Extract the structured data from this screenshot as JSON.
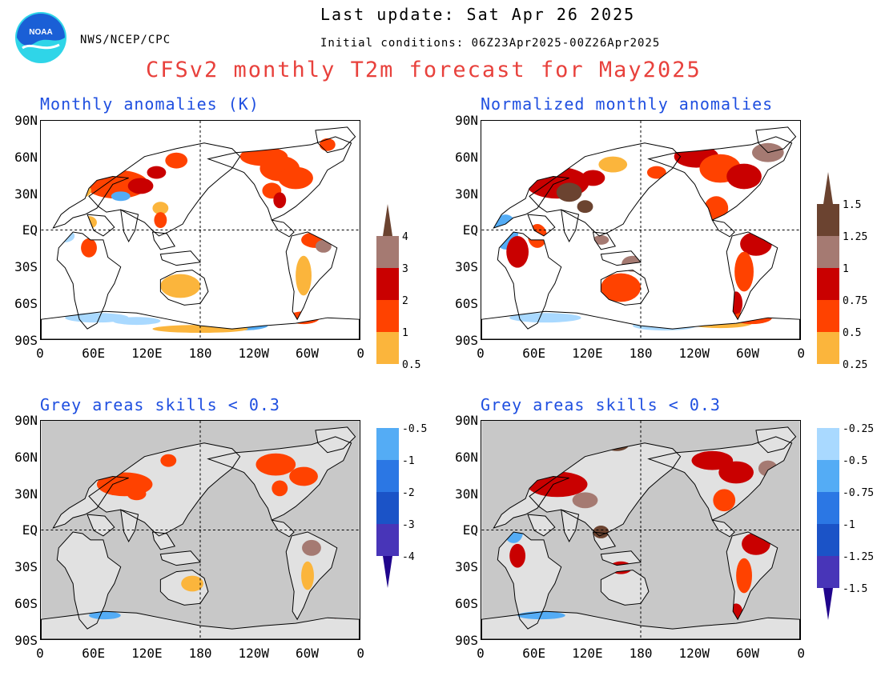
{
  "header": {
    "agency": "NWS/NCEP/CPC",
    "last_update": "Last update: Sat Apr 26 2025",
    "initial_conditions": "Initial conditions: 06Z23Apr2025-00Z26Apr2025",
    "title": "CFSv2 monthly T2m forecast for May2025",
    "logo_text": "NOAA"
  },
  "panels": [
    {
      "title": "Monthly anomalies (K)",
      "grey_background": false
    },
    {
      "title": "Normalized monthly anomalies",
      "grey_background": false
    },
    {
      "title": "Grey areas skills < 0.3",
      "grey_background": true
    },
    {
      "title": "Grey areas skills < 0.3",
      "grey_background": true
    }
  ],
  "axes": {
    "lat_labels": [
      "90N",
      "60N",
      "30N",
      "EQ",
      "30S",
      "60S",
      "90S"
    ],
    "lon_labels": [
      "0",
      "60E",
      "120E",
      "180",
      "120W",
      "60W",
      "0"
    ]
  },
  "colorbars": {
    "left": {
      "labels": [
        "4",
        "3",
        "2",
        "1",
        "0.5",
        "-0.5",
        "-1",
        "-2",
        "-3",
        "-4"
      ]
    },
    "right": {
      "labels": [
        "1.5",
        "1.25",
        "1",
        "0.75",
        "0.5",
        "0.25",
        "-0.25",
        "-0.5",
        "-0.75",
        "-1",
        "-1.25",
        "-1.5"
      ]
    }
  },
  "palette": {
    "warm": [
      "#fbb53c",
      "#ff4200",
      "#c90000",
      "#a57a72",
      "#6b4330"
    ],
    "cold": [
      "#a9d9ff",
      "#54acf5",
      "#2b77e4",
      "#1b53c7",
      "#4835b8",
      "#20058c"
    ],
    "grey": "#c8c8c8",
    "title_red": "#e8413c",
    "panel_blue": "#1f4fe0",
    "logo_blue": "#1a5fd6",
    "logo_cyan": "#2fd5e8"
  }
}
